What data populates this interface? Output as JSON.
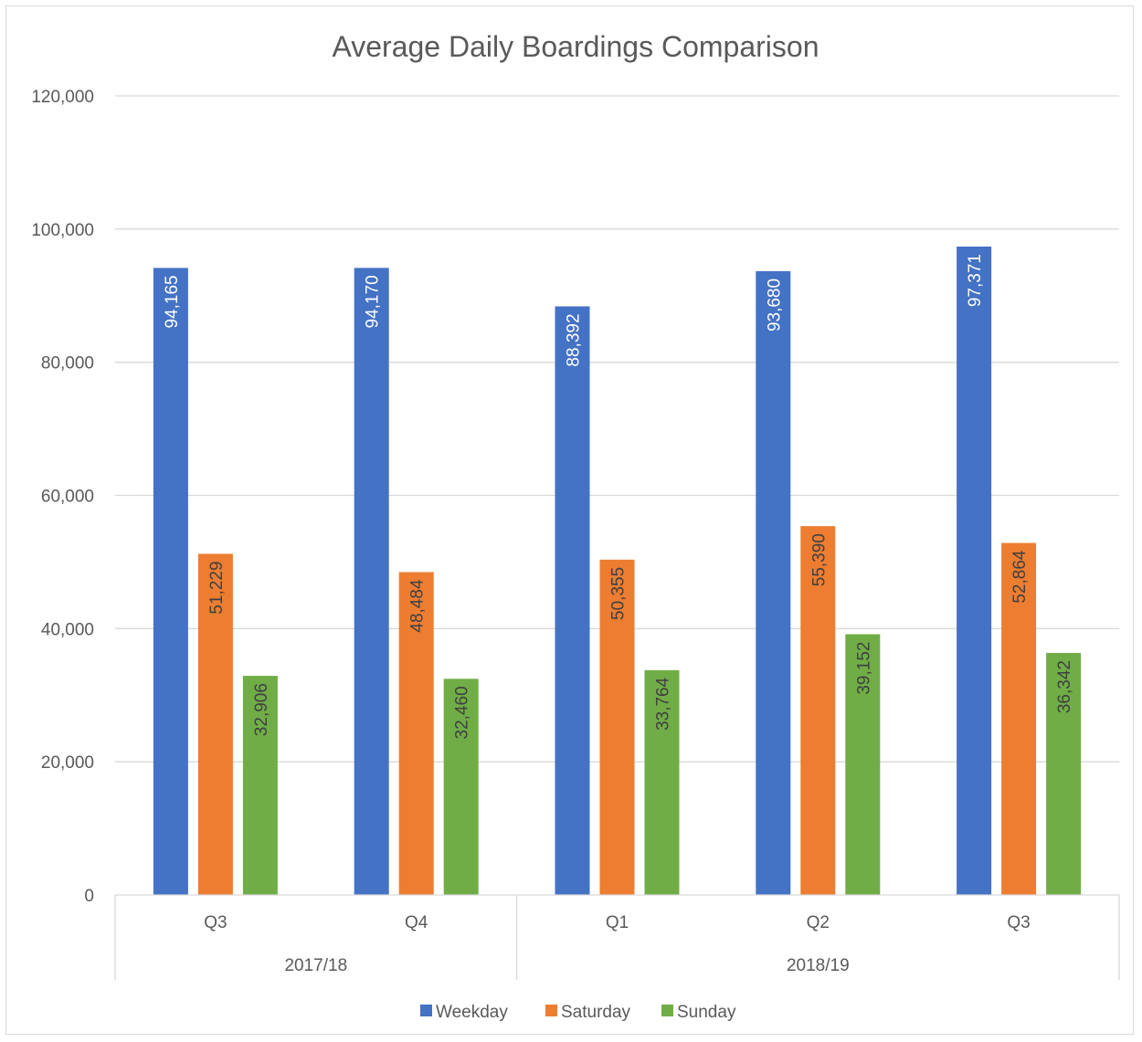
{
  "chart_data": {
    "type": "bar",
    "title": "Average Daily Boardings Comparison",
    "categories": [
      "Q3",
      "Q4",
      "Q1",
      "Q2",
      "Q3"
    ],
    "category_groups": [
      {
        "label": "2017/18",
        "members": [
          "Q3",
          "Q4"
        ]
      },
      {
        "label": "2018/19",
        "members": [
          "Q1",
          "Q2",
          "Q3"
        ]
      }
    ],
    "series": [
      {
        "name": "Weekday",
        "color": "#4472c4",
        "values": [
          94165,
          94170,
          88392,
          93680,
          97371
        ],
        "labels": [
          "94,165",
          "94,170",
          "88,392",
          "93,680",
          "97,371"
        ]
      },
      {
        "name": "Saturday",
        "color": "#ed7d31",
        "values": [
          51229,
          48484,
          50355,
          55390,
          52864
        ],
        "labels": [
          "51,229",
          "48,484",
          "50,355",
          "55,390",
          "52,864"
        ]
      },
      {
        "name": "Sunday",
        "color": "#70ad47",
        "values": [
          32906,
          32460,
          33764,
          39152,
          36342
        ],
        "labels": [
          "32,906",
          "32,460",
          "33,764",
          "39,152",
          "36,342"
        ]
      }
    ],
    "ylim": [
      0,
      120000
    ],
    "yticks": [
      0,
      20000,
      40000,
      60000,
      80000,
      100000,
      120000
    ],
    "ytick_labels": [
      "0",
      "20,000",
      "40,000",
      "60,000",
      "80,000",
      "100,000",
      "120,000"
    ],
    "xlabel": "",
    "ylabel": "",
    "grid": true,
    "legend_position": "bottom"
  }
}
